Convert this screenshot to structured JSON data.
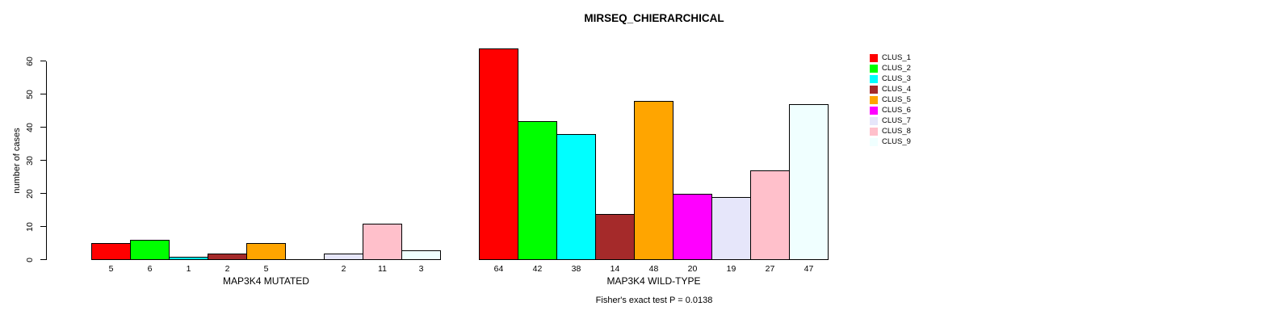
{
  "chart_data": {
    "type": "bar",
    "title": "MIRSEQ_CHIERARCHICAL",
    "ylabel": "number of cases",
    "xlabel": "",
    "ylim": [
      0,
      64
    ],
    "yticks": [
      0,
      10,
      20,
      30,
      40,
      50,
      60
    ],
    "grid": false,
    "legend_position": "right",
    "series_labels": [
      "CLUS_1",
      "CLUS_2",
      "CLUS_3",
      "CLUS_4",
      "CLUS_5",
      "CLUS_6",
      "CLUS_7",
      "CLUS_8",
      "CLUS_9"
    ],
    "colors": [
      "#FF0000",
      "#00FF00",
      "#00FFFF",
      "#A52A2A",
      "#FFA500",
      "#FF00FF",
      "#E6E6FA",
      "#FFC0CB",
      "#F0FFFF"
    ],
    "groups": [
      {
        "label": "MAP3K4 MUTATED",
        "values": [
          5,
          6,
          1,
          2,
          5,
          0,
          2,
          11,
          3
        ],
        "bar_labels": [
          "5",
          "6",
          "1",
          "2",
          "5",
          "",
          "2",
          "11",
          "3"
        ]
      },
      {
        "label": "MAP3K4 WILD-TYPE",
        "values": [
          64,
          42,
          38,
          14,
          48,
          20,
          19,
          27,
          47
        ],
        "bar_labels": [
          "64",
          "42",
          "38",
          "14",
          "48",
          "20",
          "19",
          "27",
          "47"
        ]
      }
    ],
    "annotation": "Fisher's exact test P = 0.0138",
    "axis_color": "#000000",
    "background_color": "#FFFFFF"
  }
}
